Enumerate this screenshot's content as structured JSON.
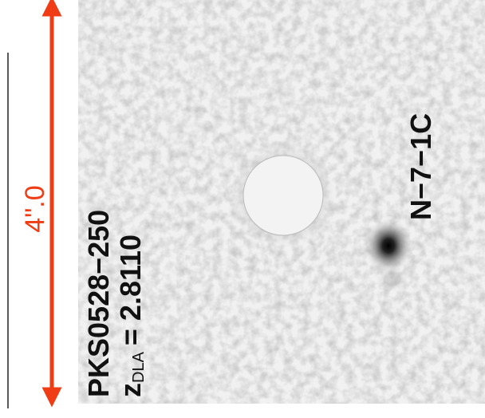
{
  "scale_label": "4\".0",
  "panel": {
    "target": "PKS0528−250",
    "redshift_symbol": "z",
    "redshift_subscript": "DLA",
    "redshift_value": "= 2.8110",
    "object_label": "N−7−1C"
  }
}
